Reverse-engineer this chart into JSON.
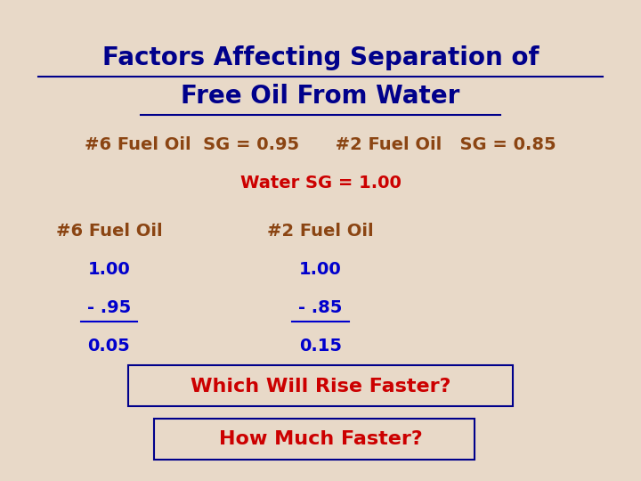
{
  "title_line1": "Factors Affecting Separation of",
  "title_line2": "Free Oil From Water",
  "title_color": "#00008B",
  "background_color": "#e8d9c8",
  "subtitle_color": "#8B4513",
  "water_sg_color": "#CC0000",
  "blue_color": "#0000CD",
  "subtitle_text": "#6 Fuel Oil  SG = 0.95      #2 Fuel Oil   SG = 0.85",
  "water_sg_text": "Water SG = 1.00",
  "fuel6_label": "#6 Fuel Oil",
  "fuel2_label": "#2 Fuel Oil",
  "fuel6_val1": "1.00",
  "fuel6_val2": "- .95",
  "fuel6_val3": "0.05",
  "fuel2_val1": "1.00",
  "fuel2_val2": "- .85",
  "fuel2_val3": "0.15",
  "question1": "Which Will Rise Faster?",
  "question2": "How Much Faster?",
  "question_color": "#CC0000",
  "box_color": "#00008B"
}
